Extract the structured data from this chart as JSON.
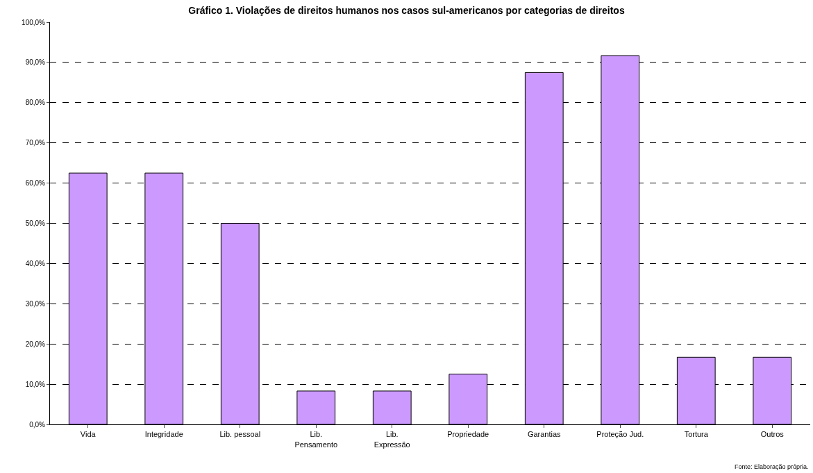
{
  "chart_data": {
    "type": "bar",
    "title": "Gráfico 1. Violações de direitos humanos nos casos sul-americanos por categorias de direitos",
    "categories": [
      "Vida",
      "Integridade",
      "Lib. pessoal",
      "Lib.\nPensamento",
      "Lib.\nExpressão",
      "Propriedade",
      "Garantias",
      "Proteção Jud.",
      "Tortura",
      "Outros"
    ],
    "values": [
      62.5,
      62.5,
      50,
      8.3,
      8.3,
      12.5,
      87.5,
      91.7,
      16.7,
      16.7
    ],
    "color": "#cc99ff",
    "ylim": [
      0,
      100
    ],
    "yticks": [
      {
        "value": 0,
        "label": "0,0%"
      },
      {
        "value": 10,
        "label": "10,0%"
      },
      {
        "value": 20,
        "label": "20,0%"
      },
      {
        "value": 30,
        "label": "30,0%"
      },
      {
        "value": 40,
        "label": "40,0%"
      },
      {
        "value": 50,
        "label": "50,0%"
      },
      {
        "value": 60,
        "label": "60,0%"
      },
      {
        "value": 70,
        "label": "70,0%"
      },
      {
        "value": 80,
        "label": "80,0%"
      },
      {
        "value": 90,
        "label": "90,0%"
      },
      {
        "value": 100,
        "label": "100,0%"
      }
    ],
    "grid": "y",
    "legend": false,
    "annotations": [
      "Fonte: Elaboração própria."
    ]
  }
}
